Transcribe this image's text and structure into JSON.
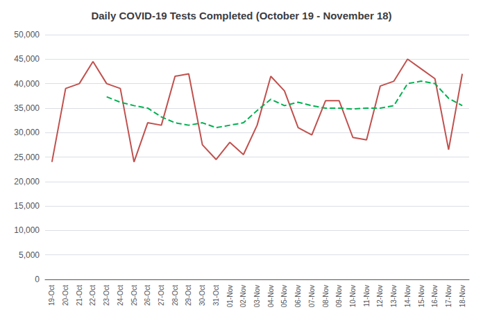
{
  "chart_data": {
    "type": "line",
    "title": "Daily COVID-19 Tests Completed (October 19 - November 18)",
    "categories": [
      "19-Oct",
      "20-Oct",
      "21-Oct",
      "22-Oct",
      "23-Oct",
      "24-Oct",
      "25-Oct",
      "26-Oct",
      "27-Oct",
      "28-Oct",
      "29-Oct",
      "30-Oct",
      "31-Oct",
      "01-Nov",
      "02-Nov",
      "03-Nov",
      "04-Nov",
      "05-Nov",
      "06-Nov",
      "07-Nov",
      "08-Nov",
      "09-Nov",
      "10-Nov",
      "11-Nov",
      "12-Nov",
      "13-Nov",
      "14-Nov",
      "15-Nov",
      "16-Nov",
      "17-Nov",
      "18-Nov"
    ],
    "series": [
      {
        "color": "#c0504d",
        "line_style": "solid",
        "values": [
          24000,
          39000,
          40000,
          44500,
          40000,
          39000,
          24000,
          32000,
          31500,
          41500,
          42000,
          27500,
          24500,
          28000,
          25500,
          31500,
          41500,
          38500,
          31000,
          29500,
          36500,
          36500,
          29000,
          28500,
          39500,
          40500,
          45000,
          43000,
          41000,
          26500,
          42000
        ]
      },
      {
        "color": "#00b050",
        "line_style": "dashed",
        "values": [
          null,
          null,
          null,
          null,
          37300,
          36200,
          35500,
          35000,
          33200,
          32000,
          31500,
          32000,
          31000,
          31500,
          32000,
          34500,
          36800,
          35500,
          36200,
          35500,
          35000,
          35000,
          34800,
          35000,
          35000,
          35500,
          40000,
          40500,
          40000,
          37000,
          35500
        ]
      }
    ],
    "ylim": [
      0,
      50000
    ],
    "yticks": [
      0,
      {
        "value": 5000,
        "label": "5,000"
      },
      {
        "value": 10000,
        "label": "10,000"
      },
      {
        "value": 15000,
        "label": "15,000"
      },
      {
        "value": 20000,
        "label": "20,000"
      },
      {
        "value": 25000,
        "label": "25,000"
      },
      {
        "value": 30000,
        "label": "30,000"
      },
      {
        "value": 35000,
        "label": "35,000"
      },
      {
        "value": 40000,
        "label": "40,000"
      },
      {
        "value": 45000,
        "label": "45,000"
      },
      {
        "value": 50000,
        "label": "50,000"
      }
    ],
    "grid": true
  }
}
